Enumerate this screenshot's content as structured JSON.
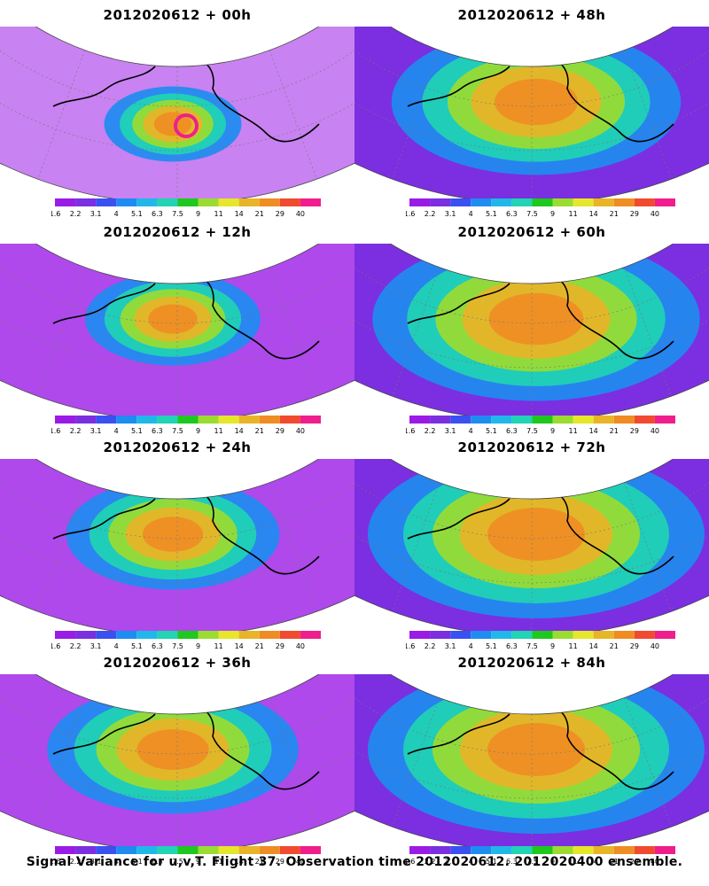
{
  "panels": [
    {
      "title": "2012020612 + 00h",
      "lead_hours": 0
    },
    {
      "title": "2012020612 + 48h",
      "lead_hours": 48
    },
    {
      "title": "2012020612 + 12h",
      "lead_hours": 12
    },
    {
      "title": "2012020612 + 60h",
      "lead_hours": 60
    },
    {
      "title": "2012020612 + 24h",
      "lead_hours": 24
    },
    {
      "title": "2012020612 + 72h",
      "lead_hours": 72
    },
    {
      "title": "2012020612 + 36h",
      "lead_hours": 36
    },
    {
      "title": "2012020612 + 84h",
      "lead_hours": 84
    }
  ],
  "colorbar": {
    "labels": [
      "1.6",
      "2.2",
      "3.1",
      "4",
      "5.1",
      "6.3",
      "7.5",
      "9",
      "11",
      "14",
      "21",
      "29",
      "40"
    ],
    "colors": [
      "#9b1be6",
      "#7b2fe0",
      "#3a50f0",
      "#1e8cf0",
      "#20b8e8",
      "#20d4b4",
      "#1ec81e",
      "#9adc30",
      "#e6e62a",
      "#e8b428",
      "#f08c24",
      "#f04a30",
      "#f01e8c"
    ]
  },
  "footer": "Signal Variance for u,v,T. Flight 37. Observation time 2012020612. 2012020400 ensemble."
}
